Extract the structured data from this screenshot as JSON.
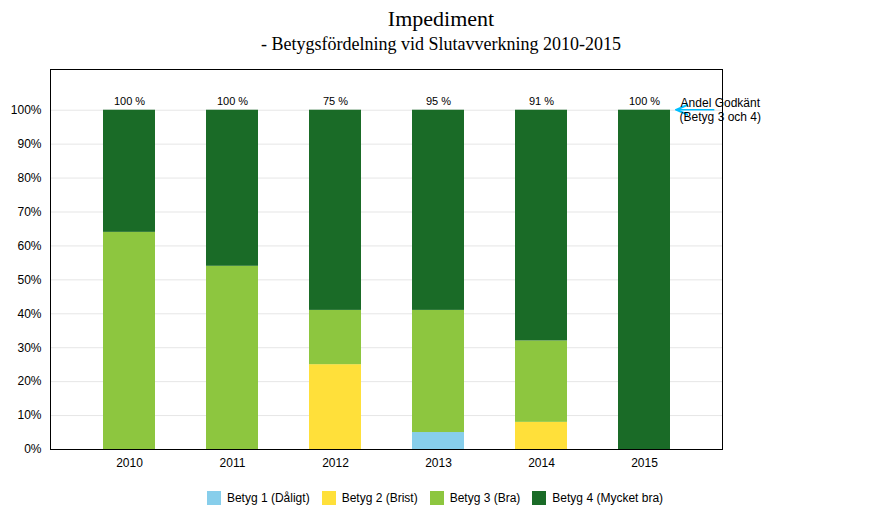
{
  "chart_data": {
    "type": "bar",
    "stacked": true,
    "title": "Impediment",
    "subtitle": "- Betygsfördelning vid Slutavverkning 2010-2015",
    "categories": [
      "2010",
      "2011",
      "2012",
      "2013",
      "2014",
      "2015"
    ],
    "series": [
      {
        "name": "Betyg 1 (Dåligt)",
        "color": "#87CEEB",
        "values": [
          0,
          0,
          0,
          5,
          0,
          0
        ]
      },
      {
        "name": "Betyg 2 (Brist)",
        "color": "#FFE03A",
        "values": [
          0,
          0,
          25,
          0,
          8,
          0
        ]
      },
      {
        "name": "Betyg 3 (Bra)",
        "color": "#8DC63F",
        "values": [
          64,
          54,
          16,
          36,
          24,
          0
        ]
      },
      {
        "name": "Betyg 4 (Mycket bra)",
        "color": "#1A6B27",
        "values": [
          36,
          46,
          59,
          59,
          68,
          100
        ]
      }
    ],
    "ylim": [
      0,
      112
    ],
    "yticks": [
      {
        "value": 0,
        "label": "0%"
      },
      {
        "value": 10,
        "label": "10%"
      },
      {
        "value": 20,
        "label": "20%"
      },
      {
        "value": 30,
        "label": "30%"
      },
      {
        "value": 40,
        "label": "40%"
      },
      {
        "value": 50,
        "label": "50%"
      },
      {
        "value": 60,
        "label": "60%"
      },
      {
        "value": 70,
        "label": "70%"
      },
      {
        "value": 80,
        "label": "80%"
      },
      {
        "value": 90,
        "label": "90%"
      },
      {
        "value": 100,
        "label": "100%"
      }
    ],
    "grid": true,
    "legend": "bottom",
    "annotations": [
      {
        "text": "100 %",
        "x": "2010"
      },
      {
        "text": "100 %",
        "x": "2011"
      },
      {
        "text": "75 %",
        "x": "2012"
      },
      {
        "text": "95 %",
        "x": "2013"
      },
      {
        "text": "91 %",
        "x": "2014"
      },
      {
        "text": "100 %",
        "x": "2015"
      },
      {
        "text": "Andel Godkänt\n(Betyg 3 och 4)",
        "x": "2015",
        "y": 100,
        "color": "#00BFFF"
      }
    ]
  }
}
